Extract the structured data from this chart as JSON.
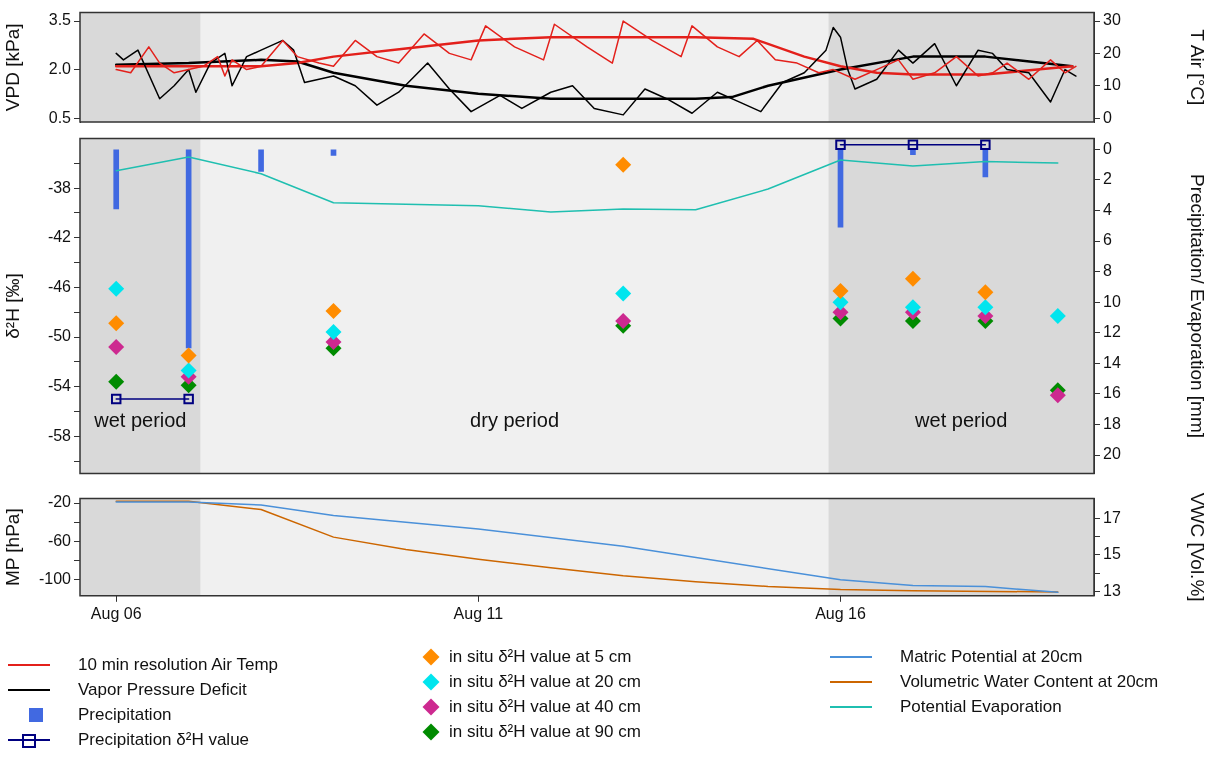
{
  "chart_data": [
    {
      "type": "line",
      "ylabel": "VPD [kPa]",
      "y2label": "T Air [°C]",
      "xlim": [
        "--08-05T12:00",
        "--08-19T12:00"
      ],
      "ylim": [
        0.38,
        3.76
      ],
      "yticks": [
        0.5,
        {
          "value": 2,
          "label": "2.0"
        },
        3.5
      ],
      "y2lim": [
        -1.2,
        32.6
      ],
      "y2ticks": [
        0,
        10,
        20,
        30
      ],
      "tick_labels": "y",
      "grid": false,
      "legend": "bottom",
      "bands": [
        {
          "axis": "x",
          "from": "--08-05T12:00",
          "to": "--08-07T04:00",
          "color": "#d9d9d9"
        },
        {
          "axis": "x",
          "from": "--08-07T04:00",
          "to": "--08-15T20:00",
          "color": "#f0f0f0"
        },
        {
          "axis": "x",
          "from": "--08-15T20:00",
          "to": "--08-19T12:00",
          "color": "#d9d9d9"
        }
      ],
      "series": [
        {
          "name": "10 min resolution Air Temp",
          "color": "#e3201b",
          "axis": "y2",
          "x": [
            "--08-06T00:00",
            "--08-06T04:48",
            "--08-06T10:48",
            "--08-06T14:24",
            "--08-06T19:12",
            "--08-07T00:00",
            "--08-07T04:48",
            "--08-07T09:36",
            "--08-07T12:00",
            "--08-07T14:24",
            "--08-07T19:12",
            "--08-08T00:00",
            "--08-08T07:12",
            "--08-08T12:00",
            "--08-08T19:12",
            "--08-09T00:00",
            "--08-09T07:12",
            "--08-09T14:24",
            "--08-09T21:36",
            "--08-10T06:00",
            "--08-10T14:24",
            "--08-10T21:36",
            "--08-11T02:24",
            "--08-11T12:00",
            "--08-11T21:36",
            "--08-12T01:12",
            "--08-12T12:00",
            "--08-12T20:24",
            "--08-13T00:00",
            "--08-13T09:36",
            "--08-13T19:12",
            "--08-13T22:48",
            "--08-14T07:12",
            "--08-14T14:24",
            "--08-14T20:24",
            "--08-15T02:24",
            "--08-15T09:36",
            "--08-15T16:48",
            "--08-15T21:36",
            "--08-16T04:48",
            "--08-16T12:00",
            "--08-16T19:12",
            "--08-17T00:00",
            "--08-17T07:12",
            "--08-17T14:24",
            "--08-17T21:36",
            "--08-18T02:24",
            "--08-18T07:12",
            "--08-18T14:24",
            "--08-18T21:36",
            "--08-19T02:24",
            "--08-19T06:00"
          ],
          "values": [
            15,
            14,
            22,
            17,
            14,
            15,
            16,
            19,
            13,
            18,
            15,
            16,
            24,
            19,
            17,
            16,
            24,
            19,
            17,
            26,
            20,
            18,
            28.5,
            22,
            18,
            29,
            22,
            17,
            30,
            24,
            19,
            28.5,
            22,
            19,
            24,
            18,
            17,
            14,
            15,
            12,
            15,
            18,
            12,
            14,
            19,
            13,
            14,
            17,
            12,
            18,
            14,
            16
          ]
        },
        {
          "name": "Vapor Pressure Deficit",
          "color": "#000000",
          "x": [
            "--08-06T00:00",
            "--08-06T02:24",
            "--08-06T07:12",
            "--08-06T14:24",
            "--08-06T19:12",
            "--08-07T00:00",
            "--08-07T02:24",
            "--08-07T07:12",
            "--08-07T12:00",
            "--08-07T14:24",
            "--08-07T19:12",
            "--08-08T00:00",
            "--08-08T07:12",
            "--08-08T10:48",
            "--08-08T14:24",
            "--08-09T00:00",
            "--08-09T07:12",
            "--08-09T14:24",
            "--08-09T21:36",
            "--08-10T07:12",
            "--08-10T14:24",
            "--08-10T21:36",
            "--08-11T07:12",
            "--08-11T14:24",
            "--08-12T00:00",
            "--08-12T07:12",
            "--08-12T14:24",
            "--08-13T00:00",
            "--08-13T07:12",
            "--08-13T14:24",
            "--08-13T22:48",
            "--08-14T07:12",
            "--08-14T14:24",
            "--08-14T21:36",
            "--08-15T04:48",
            "--08-15T12:00",
            "--08-15T19:12",
            "--08-15T21:36",
            "--08-16T00:00",
            "--08-16T02:24",
            "--08-16T04:48",
            "--08-16T12:00",
            "--08-16T19:12",
            "--08-17T00:00",
            "--08-17T07:12",
            "--08-17T14:24",
            "--08-17T21:36",
            "--08-18T02:24",
            "--08-18T07:12",
            "--08-18T14:24",
            "--08-18T21:36",
            "--08-19T02:24",
            "--08-19T06:00"
          ],
          "values": [
            2.5,
            2.3,
            2.6,
            1.1,
            1.5,
            2.0,
            1.3,
            2.2,
            2.5,
            1.5,
            2.4,
            2.6,
            2.9,
            2.6,
            1.6,
            1.8,
            1.5,
            0.9,
            1.3,
            2.2,
            1.4,
            0.7,
            1.2,
            0.8,
            1.3,
            1.5,
            0.8,
            0.6,
            1.4,
            1.1,
            0.65,
            1.3,
            1.0,
            0.7,
            1.6,
            1.9,
            2.6,
            3.3,
            3.0,
            2.0,
            1.4,
            1.7,
            2.6,
            2.2,
            2.8,
            1.5,
            2.6,
            2.5,
            2.0,
            1.9,
            1.0,
            2.0,
            1.8
          ]
        },
        {
          "color": "#e3201b",
          "axis": "y2",
          "x": [
            "--08-06",
            "--08-07",
            "--08-08",
            "--08-08T12:00",
            "--08-09",
            "--08-10",
            "--08-11",
            "--08-12",
            "--08-13",
            "--08-14",
            "--08-14T19:12",
            "--08-15T12:00",
            "--08-16",
            "--08-16T12:00",
            "--08-17",
            "--08-18",
            "--08-19T04:48"
          ],
          "values": [
            16,
            16,
            16,
            17,
            19,
            21.5,
            24,
            25,
            25,
            25,
            24.5,
            19,
            16,
            14,
            13.5,
            13.5,
            16
          ]
        },
        {
          "color": "#000000",
          "x": [
            "--08-06",
            "--08-07",
            "--08-08",
            "--08-08T12:00",
            "--08-09",
            "--08-10",
            "--08-11",
            "--08-12",
            "--08-13",
            "--08-14",
            "--08-14T12:00",
            "--08-15",
            "--08-16",
            "--08-17",
            "--08-18",
            "--08-19T04:48"
          ],
          "values": [
            2.15,
            2.2,
            2.3,
            2.25,
            1.9,
            1.5,
            1.25,
            1.1,
            1.1,
            1.1,
            1.15,
            1.5,
            2.0,
            2.4,
            2.4,
            2.1
          ]
        }
      ]
    },
    {
      "type": "scatter",
      "ylabel": "δ²H [‰]",
      "y2label": "Precipitation/ Evaporation [mm]",
      "xlim": [
        "--08-05T12:00",
        "--08-19T12:00"
      ],
      "ylim": [
        -61,
        -34
      ],
      "yticks": [
        {
          "value": -36,
          "label": null
        },
        -38,
        {
          "value": -40,
          "label": null
        },
        -42,
        {
          "value": -44,
          "label": null
        },
        -46,
        {
          "value": -48,
          "label": null
        },
        -50,
        {
          "value": -52,
          "label": null
        },
        -54,
        {
          "value": -56,
          "label": null
        },
        -58,
        {
          "value": -60,
          "label": null
        }
      ],
      "y2lim": [
        21.2,
        -0.7
      ],
      "y2ticks": [
        0,
        2,
        4,
        6,
        8,
        10,
        12,
        14,
        16,
        18,
        20
      ],
      "tick_labels": "y",
      "grid": false,
      "legend": "bottom",
      "bands": [
        {
          "axis": "x",
          "from": "--08-05T12:00",
          "to": "--08-07T04:00",
          "color": "#d9d9d9",
          "label": "wet period"
        },
        {
          "axis": "x",
          "from": "--08-07T04:00",
          "to": "--08-15T20:00",
          "color": "#f0f0f0",
          "label": "dry period"
        },
        {
          "axis": "x",
          "from": "--08-15T20:00",
          "to": "--08-19T12:00",
          "color": "#d9d9d9",
          "label": "wet period"
        }
      ],
      "series": [
        {
          "name": "Precipitation",
          "type": "bar",
          "axis": "y2",
          "color": "#4169e1",
          "x": [
            "--08-06",
            "--08-07",
            "--08-08",
            "--08-09",
            "--08-16",
            "--08-17",
            "--08-18"
          ],
          "values": [
            3.9,
            13.0,
            1.45,
            0.4,
            5.1,
            0.35,
            1.8
          ]
        },
        {
          "name": "Potential Evaporation",
          "type": "line",
          "marker": "none",
          "axis": "y2",
          "color": "#1fbfb0",
          "x": [
            "--08-06",
            "--08-07",
            "--08-08",
            "--08-09",
            "--08-10",
            "--08-11",
            "--08-12",
            "--08-13",
            "--08-14",
            "--08-15",
            "--08-16",
            "--08-17",
            "--08-18",
            "--08-19"
          ],
          "values": [
            1.4,
            0.5,
            1.6,
            3.5,
            3.6,
            3.7,
            4.1,
            3.9,
            3.95,
            2.6,
            0.7,
            1.1,
            0.8,
            0.9
          ]
        },
        {
          "name": "Precipitation δ²H value",
          "type": "line",
          "marker": "square",
          "color": "#000080",
          "x": [
            "--08-06",
            "--08-07",
            "--08-12",
            "--08-16",
            "--08-17",
            "--08-18"
          ],
          "values": [
            -55.0,
            -55.0,
            null,
            -34.5,
            -34.5,
            -34.5
          ]
        },
        {
          "name": "in situ δ²H value at 5 cm",
          "marker": "diamond",
          "color": "#ff8c00",
          "x": [
            "--08-06",
            "--08-07",
            "--08-09",
            "--08-13",
            "--08-16",
            "--08-17",
            "--08-18"
          ],
          "values": [
            -48.9,
            -51.5,
            -47.9,
            -36.1,
            -46.3,
            -45.3,
            -46.4
          ]
        },
        {
          "name": "in situ δ²H value at 20 cm",
          "marker": "diamond",
          "color": "#00e5ee",
          "x": [
            "--08-06",
            "--08-07",
            "--08-09",
            "--08-13",
            "--08-16",
            "--08-17",
            "--08-18",
            "--08-19"
          ],
          "values": [
            -46.1,
            -52.7,
            -49.6,
            -46.5,
            -47.2,
            -47.6,
            -47.6,
            -48.3
          ]
        },
        {
          "name": "in situ δ²H value at 40 cm",
          "marker": "diamond",
          "color": "#cd2990",
          "x": [
            "--08-06",
            "--08-07",
            "--08-09",
            "--08-13",
            "--08-16",
            "--08-17",
            "--08-18",
            "--08-19"
          ],
          "values": [
            -50.8,
            -53.2,
            -50.4,
            -48.7,
            -48.0,
            -48.0,
            -48.3,
            -54.7
          ]
        },
        {
          "name": "in situ δ²H value at 90 cm",
          "marker": "diamond",
          "color": "#008b00",
          "x": [
            "--08-06",
            "--08-07",
            "--08-09",
            "--08-13",
            "--08-16",
            "--08-17",
            "--08-18",
            "--08-19"
          ],
          "values": [
            -53.6,
            -53.9,
            -50.9,
            -49.1,
            -48.5,
            -48.7,
            -48.7,
            -54.3
          ]
        }
      ]
    },
    {
      "type": "line",
      "ylabel": "MP [hPa]",
      "y2label": "VWC [Vol.%]",
      "xlim": [
        "--08-05T12:00",
        "--08-19T12:00"
      ],
      "xticks": [
        {
          "value": "--08-06",
          "label": "Aug 06"
        },
        {
          "value": "--08-11",
          "label": "Aug 11"
        },
        {
          "value": "--08-16",
          "label": "Aug 16"
        }
      ],
      "ylim": [
        -116.6,
        -15.4
      ],
      "yticks": [
        -20,
        {
          "value": -40,
          "label": null
        },
        -60,
        {
          "value": -80,
          "label": null
        },
        -100
      ],
      "y2lim": [
        12.75,
        18.1
      ],
      "y2ticks": [
        13,
        {
          "value": 14,
          "label": null
        },
        15,
        {
          "value": 16,
          "label": null
        },
        17
      ],
      "grid": false,
      "legend": "bottom",
      "bands": [
        {
          "axis": "x",
          "from": "--08-05T12:00",
          "to": "--08-07T04:00",
          "color": "#d9d9d9"
        },
        {
          "axis": "x",
          "from": "--08-07T04:00",
          "to": "--08-15T20:00",
          "color": "#f0f0f0"
        },
        {
          "axis": "x",
          "from": "--08-15T20:00",
          "to": "--08-19T12:00",
          "color": "#d9d9d9"
        }
      ],
      "series": [
        {
          "name": "Matric Potential at 20cm",
          "color": "#4a90d9",
          "x": [
            "--08-06",
            "--08-07",
            "--08-08",
            "--08-09",
            "--08-11",
            "--08-13",
            "--08-16",
            "--08-17",
            "--08-18",
            "--08-19"
          ],
          "values": [
            -19,
            -19,
            -22,
            -33,
            -47,
            -65,
            -100,
            -106,
            -107,
            -113
          ]
        },
        {
          "name": "Volumetric Water Content at 20cm",
          "color": "#cc6600",
          "axis": "y2",
          "x": [
            "--08-06",
            "--08-07",
            "--08-08",
            "--08-09",
            "--08-10",
            "--08-11",
            "--08-12",
            "--08-13",
            "--08-14",
            "--08-15",
            "--08-16",
            "--08-17",
            "--08-19"
          ],
          "values": [
            17.95,
            17.95,
            17.5,
            15.98,
            15.3,
            14.76,
            14.3,
            13.86,
            13.53,
            13.26,
            13.1,
            13.03,
            12.96
          ]
        }
      ]
    }
  ]
}
